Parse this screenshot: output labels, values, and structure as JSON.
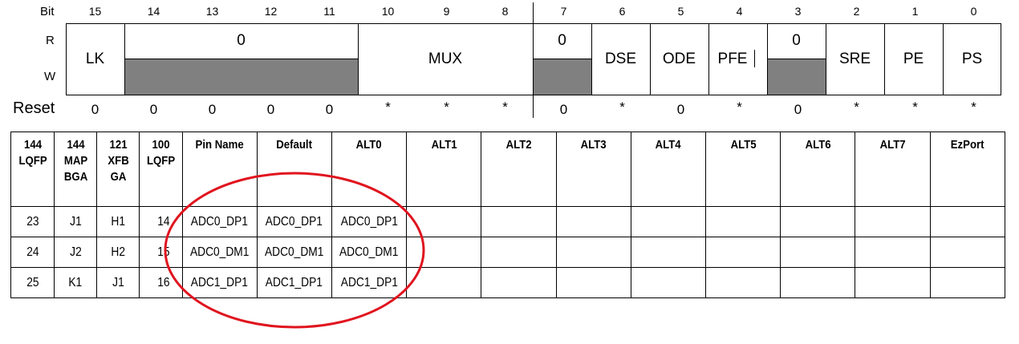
{
  "register": {
    "bit_label": "Bit",
    "r_label": "R",
    "w_label": "W",
    "reset_label": "Reset",
    "bits": [
      "15",
      "14",
      "13",
      "12",
      "11",
      "10",
      "9",
      "8",
      "7",
      "6",
      "5",
      "4",
      "3",
      "2",
      "1",
      "0"
    ],
    "fields": {
      "lk": "LK",
      "reserved_high": "0",
      "mux": "MUX",
      "reserved_7": "0",
      "dse": "DSE",
      "ode": "ODE",
      "pfe": "PFE",
      "reserved_3": "0",
      "sre": "SRE",
      "pe": "PE",
      "ps": "PS"
    },
    "reset_values": [
      "0",
      "0",
      "0",
      "0",
      "0",
      "*",
      "*",
      "*",
      "0",
      "*",
      "0",
      "*",
      "0",
      "*",
      "*",
      "*"
    ]
  },
  "table": {
    "headers": [
      [
        "144",
        "LQFP"
      ],
      [
        "144",
        "MAP",
        "BGA"
      ],
      [
        "121",
        "XFB",
        "GA"
      ],
      [
        "100",
        "LQFP"
      ],
      [
        "Pin Name"
      ],
      [
        "Default"
      ],
      [
        "ALT0"
      ],
      [
        "ALT1"
      ],
      [
        "ALT2"
      ],
      [
        "ALT3"
      ],
      [
        "ALT4"
      ],
      [
        "ALT5"
      ],
      [
        "ALT6"
      ],
      [
        "ALT7"
      ],
      [
        "EzPort"
      ]
    ],
    "rows": [
      [
        "23",
        "J1",
        "H1",
        "14",
        "ADC0_DP1",
        "ADC0_DP1",
        "ADC0_DP1",
        "",
        "",
        "",
        "",
        "",
        "",
        "",
        ""
      ],
      [
        "24",
        "J2",
        "H2",
        "15",
        "ADC0_DM1",
        "ADC0_DM1",
        "ADC0_DM1",
        "",
        "",
        "",
        "",
        "",
        "",
        "",
        ""
      ],
      [
        "25",
        "K1",
        "J1",
        "16",
        "ADC1_DP1",
        "ADC1_DP1",
        "ADC1_DP1",
        "",
        "",
        "",
        "",
        "",
        "",
        "",
        ""
      ]
    ]
  },
  "annotation": {
    "ellipse_color": "#e0141e"
  }
}
